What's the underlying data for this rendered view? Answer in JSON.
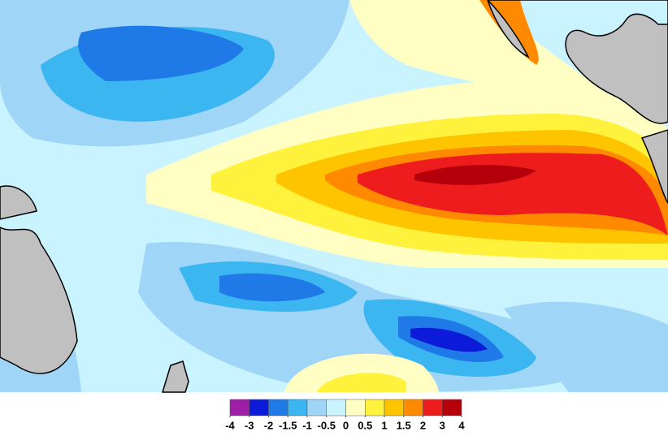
{
  "legend": {
    "ticks": [
      -4,
      -3,
      -2,
      -1.5,
      -1,
      -0.5,
      0,
      0.5,
      1,
      1.5,
      2,
      3,
      4
    ],
    "colors": [
      "#9c1fa6",
      "#0b1bd9",
      "#1f7ae8",
      "#3cb6f0",
      "#9fd6f7",
      "#c9f3ff",
      "#ffffc4",
      "#fff23c",
      "#ffc400",
      "#ff8a00",
      "#ee1c1c",
      "#b5000b"
    ]
  }
}
